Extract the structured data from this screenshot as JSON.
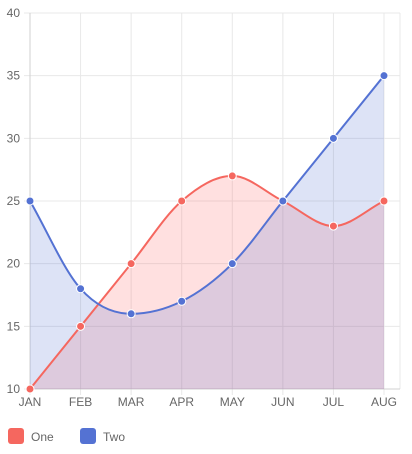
{
  "chart_data": {
    "type": "area",
    "categories": [
      "JAN",
      "FEB",
      "MAR",
      "APR",
      "MAY",
      "JUN",
      "JUL",
      "AUG"
    ],
    "ylim": [
      10,
      40
    ],
    "yticks": [
      10,
      15,
      20,
      25,
      30,
      35,
      40
    ],
    "grid": true,
    "legend_position": "bottom-left",
    "series": [
      {
        "name": "One",
        "values": [
          10,
          15,
          20,
          25,
          27,
          25,
          23,
          25
        ],
        "color": "#f5675f",
        "fill": "rgba(255, 99, 99, 0.2)",
        "curve": "smooth"
      },
      {
        "name": "Two",
        "values": [
          25,
          18,
          16,
          17,
          20,
          25,
          30,
          35
        ],
        "color": "#5472d3",
        "fill": "rgba(84, 114, 211, 0.2)",
        "curve": "smooth-first-half-then-straight"
      }
    ]
  }
}
